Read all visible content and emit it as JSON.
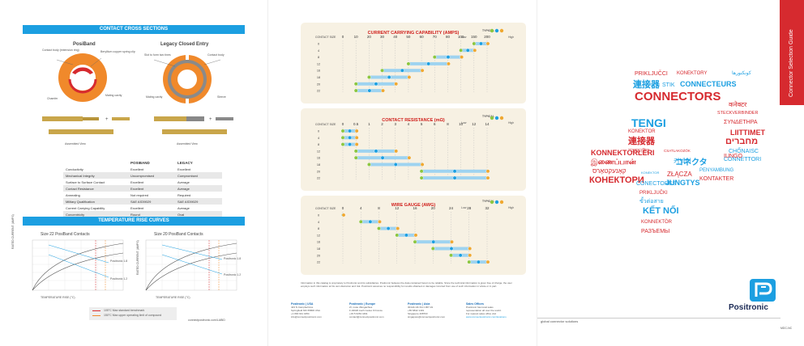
{
  "panel1": {
    "cross_title": "CONTACT CROSS SECTIONS",
    "posiband": "PosiBand",
    "legacy": "Legacy Closed Entry",
    "callouts_left": [
      "Contact body (extension ring)",
      "Beryllium copper spring clip",
      "Chamfer",
      "Mating cavity"
    ],
    "callouts_right": [
      "Slot to form two tines",
      "Contact body",
      "Mating cavity",
      "Sleeve"
    ],
    "assembled_view": "Assembled View",
    "table_headers": [
      "",
      "POSIBAND",
      "LEGACY"
    ],
    "table_rows": [
      [
        "Conductivity",
        "Excellent",
        "Excellent"
      ],
      [
        "Mechanical Integrity",
        "Uncompromised",
        "Compromised"
      ],
      [
        "Surface to Surface Contact",
        "Excellent",
        "Average"
      ],
      [
        "Contact Resistance",
        "Excellent",
        "Average"
      ],
      [
        "Annealing",
        "Not required",
        "Required"
      ],
      [
        "Military Qualification",
        "SAE AS39029",
        "SAE AS39029"
      ],
      [
        "Current Carrying Capability",
        "Excellent",
        "Average"
      ],
      [
        "Concentricity",
        "Round",
        "Oval"
      ]
    ],
    "temp_title": "TEMPERATURE RISE CURVES",
    "temp_left_title": "Size 22 PosiBand Contacts",
    "temp_right_title": "Size 20 PosiBand Contacts",
    "y_label": "RATED CURRENT (AMPS)",
    "x_label": "TEMPERATURE RISE (°C)",
    "curve_labels_left": [
      "Positronic 1.8",
      "Positronic 1.2"
    ],
    "curve_labels_right": [
      "Positronic 1.8",
      "Positronic 1.2"
    ],
    "legend": [
      "105°C Max standard benchmark",
      "150°C Max upper operating limit of compound"
    ],
    "url": "connectpositronic.com/LABID"
  },
  "panel2": {
    "chart1_title": "CURRENT CARRYING CAPABILITY (AMPS)",
    "chart1_ticks": [
      "0",
      "10",
      "20",
      "30",
      "40",
      "50",
      "60",
      "70",
      "80",
      "100",
      "150",
      "200"
    ],
    "chart2_title": "CONTACT RESISTANCE (mΩ)",
    "chart2_ticks": [
      "0",
      "0.5",
      "1",
      "2",
      "3",
      "4",
      "5",
      "6",
      "8",
      "10",
      "12",
      "14"
    ],
    "chart3_title": "WIRE GAUGE (AWG)",
    "chart3_ticks": [
      "0",
      "4",
      "8",
      "12",
      "16",
      "20",
      "24",
      "28",
      "32"
    ],
    "contact_size": "CONTACT SIZE",
    "sizes": [
      "0",
      "4",
      "8",
      "12",
      "16",
      "18",
      "20",
      "22"
    ],
    "typical": "TYPICAL",
    "low": "Low",
    "high": "High",
    "disclaimer": "Information in this catalog is proprietary to Positronic and its subsidiaries. Positronic believes the data contained herein to be reliable. Since the technical information is given free of charge, the user employs such information at his own discretion and risk. Positronic assumes no responsibility for results obtained or damages incurred from use of such information in whole or in part.",
    "offices": [
      {
        "name": "Positronic | USA",
        "lines": [
          "423 N Campbell Ave",
          "Springfield MO 65806 USA",
          "+1 800 641 4054",
          "info@connectpositronic.com"
        ]
      },
      {
        "name": "Positronic | Europe",
        "lines": [
          "ZI, route d'Engachies",
          "F-32020 Auch Cedex 9 France",
          "+33 5 6263 4491",
          "contact@connectpositronic.com"
        ]
      },
      {
        "name": "Positronic | Asia",
        "lines": [
          "3014A Ubi Rd 1 #07-01",
          "+65 6842 1419",
          "Singapore 408703",
          "singapore@connectpositronic.com"
        ]
      },
      {
        "name": "Sales Offices",
        "lines": [
          "Positronic has local sales",
          "representation all over the world.",
          "For nearest sales office visit",
          "www.connectpositronic.com/locations"
        ]
      }
    ]
  },
  "panel3": {
    "tab": "Connector Selection Guide",
    "brand": "Positronic",
    "tagline": "global connector solutions",
    "code": "MDC-NC",
    "words": [
      {
        "t": "PRIKLJUČCI",
        "c": "#d62a2f",
        "s": 7
      },
      {
        "t": "KONEKTORY",
        "c": "#d62a2f",
        "s": 6
      },
      {
        "t": "كونكتورها",
        "c": "#1c9fe1",
        "s": 6
      },
      {
        "t": "連接器",
        "c": "#1c9fe1",
        "s": 11
      },
      {
        "t": "STIK",
        "c": "#1c9fe1",
        "s": 7
      },
      {
        "t": "CONNECTEURS",
        "c": "#1c9fe1",
        "s": 9
      },
      {
        "t": "CONNECTORS",
        "c": "#d62a2f",
        "s": 15
      },
      {
        "t": "कनेक्टर",
        "c": "#d62a2f",
        "s": 8
      },
      {
        "t": "STECKVERBINDER",
        "c": "#d62a2f",
        "s": 5.5
      },
      {
        "t": "ΣΥΝΔΕΤΗΡΑ",
        "c": "#d62a2f",
        "s": 7
      },
      {
        "t": "TENGI",
        "c": "#1c9fe1",
        "s": 14
      },
      {
        "t": "LIITTIMET",
        "c": "#d62a2f",
        "s": 9
      },
      {
        "t": "KONEKTOR",
        "c": "#d62a2f",
        "s": 6
      },
      {
        "t": "מחברים",
        "c": "#d62a2f",
        "s": 11
      },
      {
        "t": "連接器",
        "c": "#d62a2f",
        "s": 11
      },
      {
        "t": "CHỐNAISC",
        "c": "#1c9fe1",
        "s": 7
      },
      {
        "t": "কানেক্টর",
        "c": "#d62a2f",
        "s": 7
      },
      {
        "t": "CONNETTORI",
        "c": "#1c9fe1",
        "s": 7
      },
      {
        "t": "KONNEKTÖRLERI",
        "c": "#d62a2f",
        "s": 9
      },
      {
        "t": "CSATLAKOZÓK",
        "c": "#d62a2f",
        "s": 4.5
      },
      {
        "t": "커넥터",
        "c": "#1c9fe1",
        "s": 8
      },
      {
        "t": "IUNGO",
        "c": "#d62a2f",
        "s": 7
      },
      {
        "t": "コネクタ",
        "c": "#1c9fe1",
        "s": 10
      },
      {
        "t": "இணைப்பான்",
        "c": "#d62a2f",
        "s": 9
      },
      {
        "t": "ZŁĄCZA",
        "c": "#d62a2f",
        "s": 8
      },
      {
        "t": "PENYAMBUNG",
        "c": "#1c9fe1",
        "s": 6
      },
      {
        "t": "קאָנעקטאָרס",
        "c": "#d62a2f",
        "s": 8
      },
      {
        "t": "KONEKTOR",
        "c": "#1c9fe1",
        "s": 4
      },
      {
        "t": "JUNGTYS",
        "c": "#1c9fe1",
        "s": 9
      },
      {
        "t": "KONTAKTER",
        "c": "#d62a2f",
        "s": 7
      },
      {
        "t": "КОНЕКТОРИ",
        "c": "#d62a2f",
        "s": 11
      },
      {
        "t": "CONECTORES",
        "c": "#1c9fe1",
        "s": 7
      },
      {
        "t": "PRIKLJUČKI",
        "c": "#d62a2f",
        "s": 6
      },
      {
        "t": "ขั้วต่อสาย",
        "c": "#1c9fe1",
        "s": 7
      },
      {
        "t": "KẾT NỐI",
        "c": "#1c9fe1",
        "s": 11
      },
      {
        "t": "KONNEKTÖR",
        "c": "#d62a2f",
        "s": 6
      },
      {
        "t": "РАЗЪЕМЫ",
        "c": "#d62a2f",
        "s": 7
      }
    ]
  }
}
